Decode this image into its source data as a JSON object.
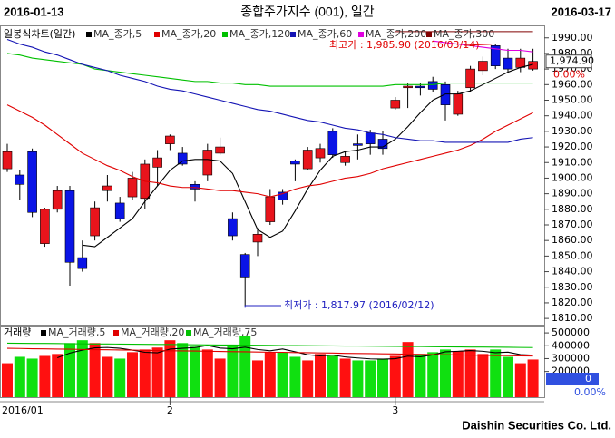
{
  "header": {
    "start_date": "2016-01-13",
    "title": "종합주가지수 (001), 일간",
    "end_date": "2016-03-17"
  },
  "footer": "Daishin Securities Co. Ltd.",
  "chart_data": [
    {
      "type": "candlestick",
      "legend_title": "일봉식차트(일간)",
      "categories": [
        "2016/01",
        null,
        null,
        null,
        null,
        null,
        null,
        null,
        null,
        null,
        null,
        null,
        null,
        "2",
        null,
        null,
        null,
        null,
        null,
        null,
        null,
        null,
        null,
        null,
        null,
        null,
        null,
        null,
        null,
        null,
        null,
        "3",
        null,
        null,
        null,
        null,
        null,
        null,
        null,
        null,
        null,
        null,
        null
      ],
      "open": [
        1906,
        1902,
        1917,
        1858,
        1880,
        1892,
        1849,
        1863,
        1892,
        1884,
        1888,
        1887,
        1907,
        1922,
        1916,
        1896,
        1902,
        1916,
        1874,
        1851,
        1859,
        1872,
        1891,
        1911,
        1906,
        1913,
        1930,
        1910,
        1922,
        1929,
        1925,
        1945,
        1958,
        1959,
        1962,
        1960,
        1941,
        1958,
        1969,
        1985,
        1977,
        1971,
        1970
      ],
      "high": [
        1922,
        1905,
        1919,
        1881,
        1895,
        1895,
        1860,
        1885,
        1902,
        1888,
        1904,
        1912,
        1918,
        1928,
        1920,
        1898,
        1922,
        1926,
        1878,
        1852,
        1868,
        1893,
        1893,
        1912,
        1920,
        1922,
        1932,
        1917,
        1928,
        1931,
        1930,
        1952,
        1961,
        1961,
        1965,
        1962,
        1956,
        1972,
        1978,
        1985.9,
        1983,
        1983,
        1983
      ],
      "low": [
        1904,
        1886,
        1875,
        1856,
        1878,
        1831,
        1840,
        1860,
        1885,
        1872,
        1886,
        1880,
        1895,
        1918,
        1908,
        1885,
        1898,
        1915,
        1860,
        1817.97,
        1850,
        1870,
        1883,
        1898,
        1905,
        1910,
        1913,
        1908,
        1912,
        1915,
        1915,
        1944,
        1945,
        1953,
        1955,
        1937,
        1940,
        1955,
        1966,
        1970,
        1968,
        1968,
        1969
      ],
      "close": [
        1917,
        1896,
        1878,
        1880,
        1892,
        1846,
        1842,
        1881,
        1895,
        1874,
        1900,
        1909,
        1913,
        1927,
        1909,
        1893,
        1918,
        1920,
        1863,
        1836,
        1864,
        1888,
        1886,
        1909,
        1918,
        1919,
        1915,
        1914,
        1921,
        1922,
        1919,
        1950,
        1959,
        1958,
        1957,
        1947,
        1954,
        1970,
        1975,
        1972,
        1970,
        1977,
        1974.9
      ],
      "up_color": "#e8141c",
      "down_color": "#0a14e6",
      "series": [
        {
          "name": "MA_종가,5",
          "color": "#000000",
          "values": [
            null,
            null,
            null,
            null,
            null,
            null,
            1857,
            1856,
            1862,
            1868,
            1874,
            1885,
            1895,
            1905,
            1911,
            1912,
            1912,
            1911,
            1903,
            1885,
            1867,
            1862,
            1866,
            1879,
            1893,
            1905,
            1914,
            1917,
            1918,
            1920,
            1920,
            1925,
            1933,
            1942,
            1950,
            1954,
            1954,
            1956,
            1960,
            1964,
            1968,
            1971,
            1973
          ]
        },
        {
          "name": "MA_종가,20",
          "color": "#e00000",
          "values": [
            1947,
            1943,
            1939,
            1934,
            1928,
            1922,
            1916,
            1912,
            1908,
            1905,
            1901,
            1898,
            1897,
            1895,
            1894,
            1894,
            1893,
            1892,
            1892,
            1891,
            1890,
            1888,
            1890,
            1893,
            1895,
            1896,
            1898,
            1900,
            1901,
            1903,
            1906,
            1908,
            1910,
            1912,
            1914,
            1916,
            1918,
            1921,
            1925,
            1930,
            1934,
            1938,
            1942
          ]
        },
        {
          "name": "MA_종가,120",
          "color": "#00c000",
          "values": [
            1980,
            1979,
            1977,
            1976,
            1975,
            1974,
            1973,
            1970,
            1969,
            1968,
            1967,
            1966,
            1965,
            1964,
            1963,
            1962,
            1962,
            1961,
            1961,
            1960,
            1960,
            1959,
            1959,
            1959,
            1959,
            1959,
            1959,
            1959,
            1959,
            1959,
            1959,
            1960,
            1960,
            1960,
            1960,
            1961,
            1961,
            1961,
            1961,
            1961,
            1961,
            1961,
            1961
          ]
        },
        {
          "name": "MA_종가,60",
          "color": "#1414b4",
          "values": [
            1989,
            1986,
            1984,
            1981,
            1979,
            1976,
            1973,
            1971,
            1969,
            1966,
            1964,
            1962,
            1959,
            1957,
            1956,
            1954,
            1952,
            1950,
            1948,
            1946,
            1944,
            1943,
            1941,
            1939,
            1937,
            1936,
            1934,
            1932,
            1931,
            1929,
            1928,
            1926,
            1925,
            1924,
            1924,
            1923,
            1923,
            1923,
            1923,
            1923,
            1923,
            1925,
            1926
          ]
        },
        {
          "name": "MA_종가,200",
          "color": "#e000e0",
          "values": [
            null,
            null,
            null,
            null,
            null,
            null,
            null,
            null,
            null,
            null,
            null,
            null,
            null,
            null,
            null,
            null,
            null,
            null,
            null,
            null,
            null,
            null,
            null,
            null,
            null,
            null,
            null,
            null,
            null,
            null,
            null,
            null,
            null,
            null,
            1988,
            1987,
            1986,
            1985,
            1984,
            1983,
            1982,
            1982,
            1981
          ]
        },
        {
          "name": "MA_종가,300",
          "color": "#800000",
          "values": [
            null,
            null,
            null,
            null,
            null,
            null,
            null,
            null,
            null,
            null,
            null,
            null,
            null,
            null,
            null,
            null,
            null,
            null,
            null,
            null,
            null,
            null,
            null,
            null,
            null,
            null,
            null,
            null,
            null,
            null,
            null,
            1994,
            1994,
            1994,
            1994,
            1994,
            1994,
            1994,
            1994,
            1994,
            1994,
            1994,
            1994
          ]
        }
      ],
      "ylim": [
        1806,
        1998
      ],
      "yticks": [
        {
          "value": 1810,
          "label": "1810.00"
        },
        {
          "value": 1820,
          "label": "1820.00"
        },
        {
          "value": 1830,
          "label": "1830.00"
        },
        {
          "value": 1840,
          "label": "1840.00"
        },
        {
          "value": 1850,
          "label": "1850.00"
        },
        {
          "value": 1860,
          "label": "1860.00"
        },
        {
          "value": 1870,
          "label": "1870.00"
        },
        {
          "value": 1880,
          "label": "1880.00"
        },
        {
          "value": 1890,
          "label": "1890.00"
        },
        {
          "value": 1900,
          "label": "1900.00"
        },
        {
          "value": 1910,
          "label": "1910.00"
        },
        {
          "value": 1920,
          "label": "1920.00"
        },
        {
          "value": 1930,
          "label": "1930.00"
        },
        {
          "value": 1940,
          "label": "1940.00"
        },
        {
          "value": 1950,
          "label": "1950.00"
        },
        {
          "value": 1960,
          "label": "1960.00"
        },
        {
          "value": 1970,
          "label": "1970.00"
        },
        {
          "value": 1980,
          "label": "1980.00"
        },
        {
          "value": 1990,
          "label": "1990.00"
        }
      ],
      "annotations": [
        {
          "label": "최고가 : 1,985.90 (2016/03/14)",
          "value": 1985.9,
          "color": "#e00000"
        },
        {
          "label": "최저가 : 1,817.97 (2016/02/12)",
          "value": 1817.97,
          "color": "#2020c0"
        }
      ],
      "readout": {
        "value": 1974.9,
        "label": "1,974.90"
      },
      "change_label": "0.00%"
    },
    {
      "type": "bar",
      "legend_title": "거래량",
      "values": [
        264000,
        314000,
        300000,
        321000,
        336000,
        421000,
        443000,
        421000,
        314000,
        300000,
        350000,
        371000,
        386000,
        443000,
        421000,
        393000,
        371000,
        300000,
        400000,
        479000,
        286000,
        350000,
        350000,
        314000,
        286000,
        336000,
        321000,
        300000,
        286000,
        286000,
        300000,
        321000,
        429000,
        336000,
        350000,
        371000,
        357000,
        371000,
        336000,
        371000,
        314000,
        264000,
        293000
      ],
      "up_color": "#ff1010",
      "down_color": "#10e010",
      "series": [
        {
          "name": "MA_거래량,5",
          "color": "#000000",
          "values": [
            null,
            null,
            null,
            null,
            307000,
            343000,
            366000,
            384000,
            387000,
            380000,
            366000,
            349000,
            345000,
            374000,
            380000,
            386000,
            402000,
            382000,
            377000,
            389000,
            371000,
            361000,
            375000,
            353000,
            330000,
            321000,
            327000,
            313000,
            305000,
            298000,
            296000,
            299000,
            319000,
            314000,
            329000,
            353000,
            357000,
            363000,
            357000,
            346000,
            350000,
            331000,
            327000
          ]
        },
        {
          "name": "MA_거래량,20",
          "color": "#e00000",
          "values": [
            380000,
            379000,
            377000,
            376000,
            374000,
            373000,
            371000,
            370000,
            369000,
            367000,
            366000,
            364000,
            363000,
            361000,
            360000,
            359000,
            357000,
            356000,
            354000,
            353000,
            351000,
            350000,
            349000,
            347000,
            346000,
            344000,
            343000,
            341000,
            340000,
            339000,
            337000,
            336000,
            334000,
            333000,
            331000,
            330000,
            329000,
            327000,
            326000,
            324000,
            323000,
            321000,
            320000
          ]
        },
        {
          "name": "MA_거래량,75",
          "color": "#00c000",
          "values": [
            420000,
            419000,
            418000,
            418000,
            417000,
            416000,
            415000,
            414000,
            414000,
            413000,
            412000,
            411000,
            410000,
            410000,
            409000,
            408000,
            407000,
            406000,
            406000,
            405000,
            404000,
            403000,
            402000,
            402000,
            401000,
            400000,
            399000,
            398000,
            398000,
            397000,
            396000,
            395000,
            394000,
            394000,
            393000,
            392000,
            391000,
            390000,
            390000,
            389000,
            388000,
            387000,
            386000
          ]
        }
      ],
      "ylim": [
        0,
        550000
      ],
      "yticks": [
        200000,
        300000,
        400000,
        500000
      ],
      "readout": 0,
      "change_label": "0.00%"
    }
  ]
}
